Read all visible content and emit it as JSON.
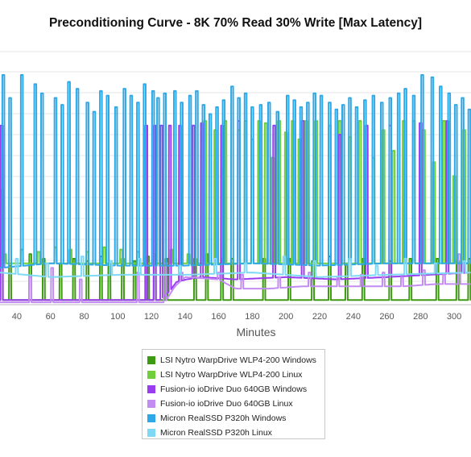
{
  "chart_data": {
    "type": "line",
    "title": "Preconditioning Curve - 8K 70% Read 30% Write [Max Latency]",
    "xlabel": "Minutes",
    "ylabel": "",
    "xlim": [
      30,
      310
    ],
    "ylim": [
      0,
      100
    ],
    "y_note": "no y-axis tick labels visible; y values are relative (percent of visible plot height)",
    "x_ticks": [
      40,
      60,
      80,
      100,
      120,
      140,
      160,
      180,
      200,
      220,
      240,
      260,
      280,
      300
    ],
    "grid": "horizontal",
    "legend_position": "bottom",
    "series": [
      {
        "name": "LSI Nytro WarpDrive WLP4-200 Windows",
        "color": "#3e9a12",
        "baseline": [
          [
            30,
            2
          ],
          [
            310,
            2
          ]
        ],
        "spikes": [
          [
            31,
            50
          ],
          [
            36,
            17
          ],
          [
            48,
            22
          ],
          [
            56,
            20
          ],
          [
            66,
            18
          ],
          [
            74,
            20
          ],
          [
            82,
            19
          ],
          [
            90,
            21
          ],
          [
            95,
            18
          ],
          [
            103,
            20
          ],
          [
            110,
            19
          ],
          [
            118,
            21
          ],
          [
            122,
            20
          ],
          [
            129,
            20
          ],
          [
            146,
            20
          ],
          [
            153,
            22
          ],
          [
            162,
            20
          ],
          [
            168,
            20
          ],
          [
            187,
            20
          ],
          [
            202,
            20
          ],
          [
            216,
            19
          ],
          [
            226,
            21
          ],
          [
            236,
            18
          ],
          [
            246,
            20
          ],
          [
            262,
            19
          ],
          [
            274,
            20
          ],
          [
            290,
            20
          ],
          [
            302,
            19
          ],
          [
            309,
            20
          ]
        ]
      },
      {
        "name": "LSI Nytro WarpDrive WLP4-200 Linux",
        "color": "#6fcf3a",
        "baseline": [
          [
            30,
            18
          ],
          [
            80,
            18
          ],
          [
            120,
            18
          ],
          [
            150,
            18
          ],
          [
            200,
            18
          ],
          [
            250,
            18
          ],
          [
            310,
            18
          ]
        ],
        "spikes": [
          [
            33,
            22
          ],
          [
            43,
            24
          ],
          [
            53,
            23
          ],
          [
            63,
            25
          ],
          [
            72,
            24
          ],
          [
            82,
            23
          ],
          [
            92,
            25
          ],
          [
            102,
            24
          ],
          [
            112,
            23
          ],
          [
            122,
            22
          ],
          [
            132,
            24
          ],
          [
            142,
            22
          ],
          [
            152,
            80
          ],
          [
            158,
            76
          ],
          [
            164,
            80
          ],
          [
            172,
            76
          ],
          [
            176,
            80
          ],
          [
            180,
            72
          ],
          [
            184,
            80
          ],
          [
            188,
            79
          ],
          [
            192,
            64
          ],
          [
            196,
            80
          ],
          [
            200,
            75
          ],
          [
            204,
            80
          ],
          [
            208,
            72
          ],
          [
            212,
            80
          ],
          [
            218,
            80
          ],
          [
            226,
            78
          ],
          [
            232,
            80
          ],
          [
            238,
            73
          ],
          [
            244,
            80
          ],
          [
            252,
            64
          ],
          [
            258,
            76
          ],
          [
            264,
            67
          ],
          [
            270,
            80
          ],
          [
            276,
            80
          ],
          [
            282,
            76
          ],
          [
            288,
            62
          ],
          [
            294,
            80
          ],
          [
            300,
            56
          ],
          [
            306,
            76
          ]
        ]
      },
      {
        "name": "Fusion-io ioDrive Duo 640GB Windows",
        "color": "#9a3cf0",
        "baseline": [
          [
            30,
            2
          ],
          [
            125,
            2
          ],
          [
            131,
            6
          ],
          [
            135,
            10
          ],
          [
            141,
            11
          ],
          [
            150,
            12
          ],
          [
            170,
            11
          ],
          [
            200,
            12
          ],
          [
            230,
            11
          ],
          [
            260,
            12
          ],
          [
            285,
            13
          ],
          [
            310,
            14
          ]
        ],
        "spikes": [
          [
            31,
            78
          ],
          [
            117,
            78
          ],
          [
            122,
            78
          ],
          [
            126,
            78
          ],
          [
            131,
            78
          ],
          [
            137,
            78
          ],
          [
            145,
            78
          ],
          [
            150,
            79
          ],
          [
            162,
            78
          ],
          [
            172,
            80
          ],
          [
            193,
            78
          ],
          [
            210,
            80
          ],
          [
            232,
            74
          ],
          [
            248,
            78
          ],
          [
            262,
            78
          ],
          [
            280,
            79
          ],
          [
            296,
            80
          ],
          [
            305,
            18
          ]
        ]
      },
      {
        "name": "Fusion-io ioDrive Duo 640GB Linux",
        "color": "#c28cf2",
        "baseline": [
          [
            30,
            1
          ],
          [
            128,
            1
          ],
          [
            134,
            8
          ],
          [
            140,
            12
          ],
          [
            160,
            11
          ],
          [
            170,
            7
          ],
          [
            190,
            7
          ],
          [
            210,
            8
          ],
          [
            230,
            8
          ],
          [
            250,
            8
          ],
          [
            270,
            8
          ],
          [
            290,
            9
          ],
          [
            310,
            9
          ]
        ],
        "spikes": [
          [
            48,
            12
          ],
          [
            61,
            16
          ],
          [
            78,
            11
          ],
          [
            112,
            14
          ],
          [
            128,
            18
          ],
          [
            138,
            14
          ],
          [
            146,
            12
          ],
          [
            160,
            14
          ],
          [
            174,
            13
          ],
          [
            196,
            12
          ],
          [
            214,
            14
          ],
          [
            231,
            12
          ],
          [
            245,
            13
          ],
          [
            258,
            14
          ],
          [
            269,
            12
          ],
          [
            282,
            15
          ],
          [
            294,
            13
          ],
          [
            303,
            22
          ]
        ]
      },
      {
        "name": "Micron RealSSD P320h Windows",
        "color": "#2ea8e6",
        "baseline": [
          [
            30,
            16
          ],
          [
            60,
            18
          ],
          [
            100,
            17
          ],
          [
            140,
            17
          ],
          [
            180,
            18
          ],
          [
            220,
            17
          ],
          [
            260,
            18
          ],
          [
            310,
            18
          ]
        ],
        "spikes": [
          [
            32,
            100
          ],
          [
            36,
            90
          ],
          [
            43,
            100
          ],
          [
            51,
            96
          ],
          [
            55,
            92
          ],
          [
            63,
            90
          ],
          [
            67,
            87
          ],
          [
            71,
            97
          ],
          [
            76,
            94
          ],
          [
            82,
            88
          ],
          [
            86,
            84
          ],
          [
            90,
            93
          ],
          [
            94,
            91
          ],
          [
            99,
            86
          ],
          [
            104,
            94
          ],
          [
            108,
            91
          ],
          [
            112,
            88
          ],
          [
            116,
            96
          ],
          [
            121,
            93
          ],
          [
            124,
            90
          ],
          [
            128,
            92
          ],
          [
            134,
            93
          ],
          [
            138,
            88
          ],
          [
            143,
            91
          ],
          [
            147,
            93
          ],
          [
            151,
            87
          ],
          [
            155,
            83
          ],
          [
            159,
            86
          ],
          [
            163,
            89
          ],
          [
            168,
            95
          ],
          [
            172,
            90
          ],
          [
            176,
            92
          ],
          [
            180,
            86
          ],
          [
            185,
            87
          ],
          [
            190,
            88
          ],
          [
            195,
            84
          ],
          [
            201,
            91
          ],
          [
            205,
            89
          ],
          [
            209,
            86
          ],
          [
            213,
            88
          ],
          [
            217,
            92
          ],
          [
            221,
            91
          ],
          [
            226,
            88
          ],
          [
            230,
            85
          ],
          [
            234,
            87
          ],
          [
            238,
            90
          ],
          [
            242,
            86
          ],
          [
            247,
            89
          ],
          [
            252,
            91
          ],
          [
            257,
            88
          ],
          [
            262,
            90
          ],
          [
            267,
            92
          ],
          [
            271,
            94
          ],
          [
            276,
            91
          ],
          [
            281,
            100
          ],
          [
            287,
            99
          ],
          [
            292,
            95
          ],
          [
            297,
            92
          ],
          [
            301,
            87
          ],
          [
            305,
            90
          ],
          [
            309,
            85
          ]
        ]
      },
      {
        "name": "Micron RealSSD P320h Linux",
        "color": "#7fd9f5",
        "baseline": [
          [
            30,
            14
          ],
          [
            60,
            12
          ],
          [
            100,
            13
          ],
          [
            140,
            13
          ],
          [
            180,
            14
          ],
          [
            220,
            12
          ],
          [
            260,
            13
          ],
          [
            310,
            14
          ]
        ],
        "spikes": [
          [
            40,
            20
          ],
          [
            58,
            18
          ],
          [
            79,
            21
          ],
          [
            96,
            19
          ],
          [
            113,
            20
          ],
          [
            137,
            17
          ],
          [
            158,
            20
          ],
          [
            176,
            18
          ],
          [
            199,
            21
          ],
          [
            217,
            19
          ],
          [
            238,
            20
          ],
          [
            254,
            17
          ],
          [
            271,
            20
          ],
          [
            289,
            18
          ],
          [
            306,
            19
          ]
        ]
      }
    ]
  }
}
